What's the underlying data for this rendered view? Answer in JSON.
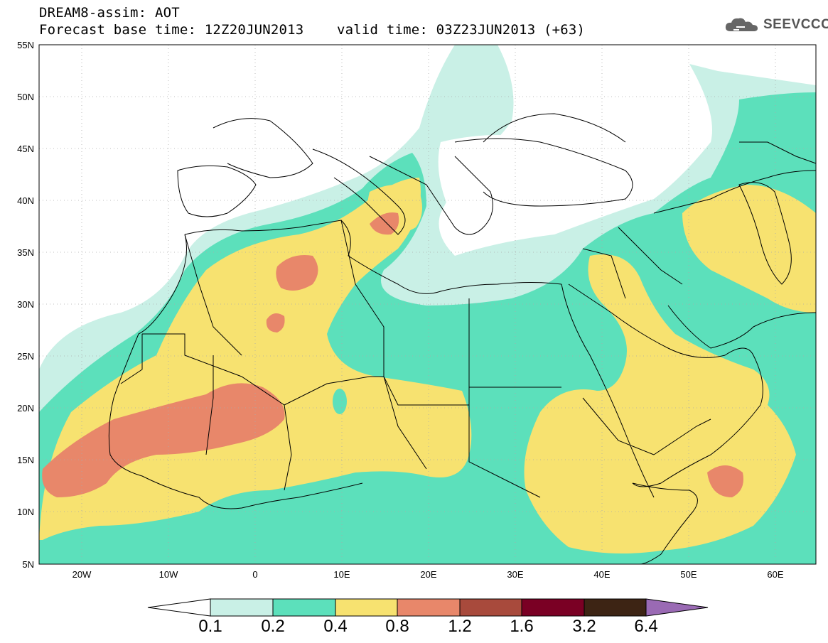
{
  "header": {
    "line1": "DREAM8-assim: AOT",
    "line2": "Forecast base time: 12Z20JUN2013    valid time: 03Z23JUN2013 (+63)"
  },
  "logo": {
    "text": "SEEVCCC",
    "icon": "cloud-icon"
  },
  "axes": {
    "lat_labels": [
      "55N",
      "50N",
      "45N",
      "40N",
      "35N",
      "30N",
      "25N",
      "20N",
      "15N",
      "10N",
      "5N"
    ],
    "lon_labels": [
      "20W",
      "10W",
      "0",
      "10E",
      "20E",
      "30E",
      "40E",
      "50E",
      "60E"
    ]
  },
  "colorbar": {
    "labels": [
      "0.1",
      "0.2",
      "0.4",
      "0.8",
      "1.2",
      "1.6",
      "3.2",
      "6.4"
    ],
    "colors": [
      "#c9f0e6",
      "#5ce0bb",
      "#f7e270",
      "#e8876a",
      "#a84a3c",
      "#7a0024",
      "#3d2414",
      "#9a6ab4"
    ]
  },
  "colors": {
    "ocean": "#ffffff",
    "land_border": "#000000"
  }
}
